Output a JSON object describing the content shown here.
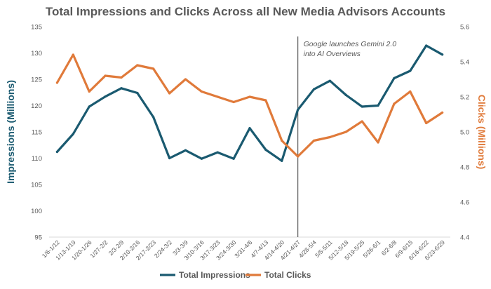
{
  "chart_data": {
    "type": "line",
    "title": "Total Impressions and Clicks Across all New Media Advisors Accounts",
    "categories": [
      "1/6-1/12",
      "1/13-1/19",
      "1/20-1/26",
      "1/27-2/2",
      "2/3-2/9",
      "2/10-2/16",
      "2/17-2/23",
      "2/24-3/2",
      "3/3-3/9",
      "3/10-3/16",
      "3/17-3/23",
      "3/24-3/30",
      "3/31-4/6",
      "4/7-4/13",
      "4/14-4/20",
      "4/21-4/27",
      "4/28-5/4",
      "5/5-5/11",
      "5/12-5/18",
      "5/19-5/25",
      "5/26-6/1",
      "6/2-6/8",
      "6/9-6/15",
      "6/16-6/22",
      "6/23-6/29"
    ],
    "y_left": {
      "label": "Impressions (Millions)",
      "min": 95,
      "max": 135,
      "ticks": [
        95,
        100,
        105,
        110,
        115,
        120,
        125,
        130,
        135
      ]
    },
    "y_right": {
      "label": "Clicks (Millions)",
      "min": 4.4,
      "max": 5.6,
      "ticks": [
        "4.4",
        "4.6",
        "4.8",
        "5.0",
        "5.2",
        "5.4",
        "5.6"
      ]
    },
    "series": [
      {
        "name": "Total Impressions",
        "axis": "left",
        "color": "#1a5a70",
        "values": [
          111.2,
          114.6,
          119.8,
          121.7,
          123.3,
          122.4,
          117.8,
          110.0,
          111.5,
          109.9,
          111.1,
          109.9,
          115.7,
          111.6,
          109.5,
          119.2,
          123.1,
          124.7,
          122.0,
          119.8,
          120.0,
          125.2,
          126.6,
          131.4,
          129.7
        ]
      },
      {
        "name": "Total Clicks",
        "axis": "right",
        "color": "#e07a3a",
        "values": [
          5.28,
          5.44,
          5.23,
          5.32,
          5.31,
          5.38,
          5.36,
          5.22,
          5.3,
          5.23,
          5.2,
          5.17,
          5.2,
          5.18,
          4.95,
          4.86,
          4.95,
          4.97,
          5.0,
          5.06,
          4.94,
          5.16,
          5.23,
          5.05,
          5.11
        ]
      }
    ],
    "annotation": {
      "text_lines": [
        "Google launches Gemini 2.0",
        "into AI Overviews"
      ],
      "at_category": "4/21-4/27"
    },
    "legend": "bottom",
    "grid": false
  }
}
